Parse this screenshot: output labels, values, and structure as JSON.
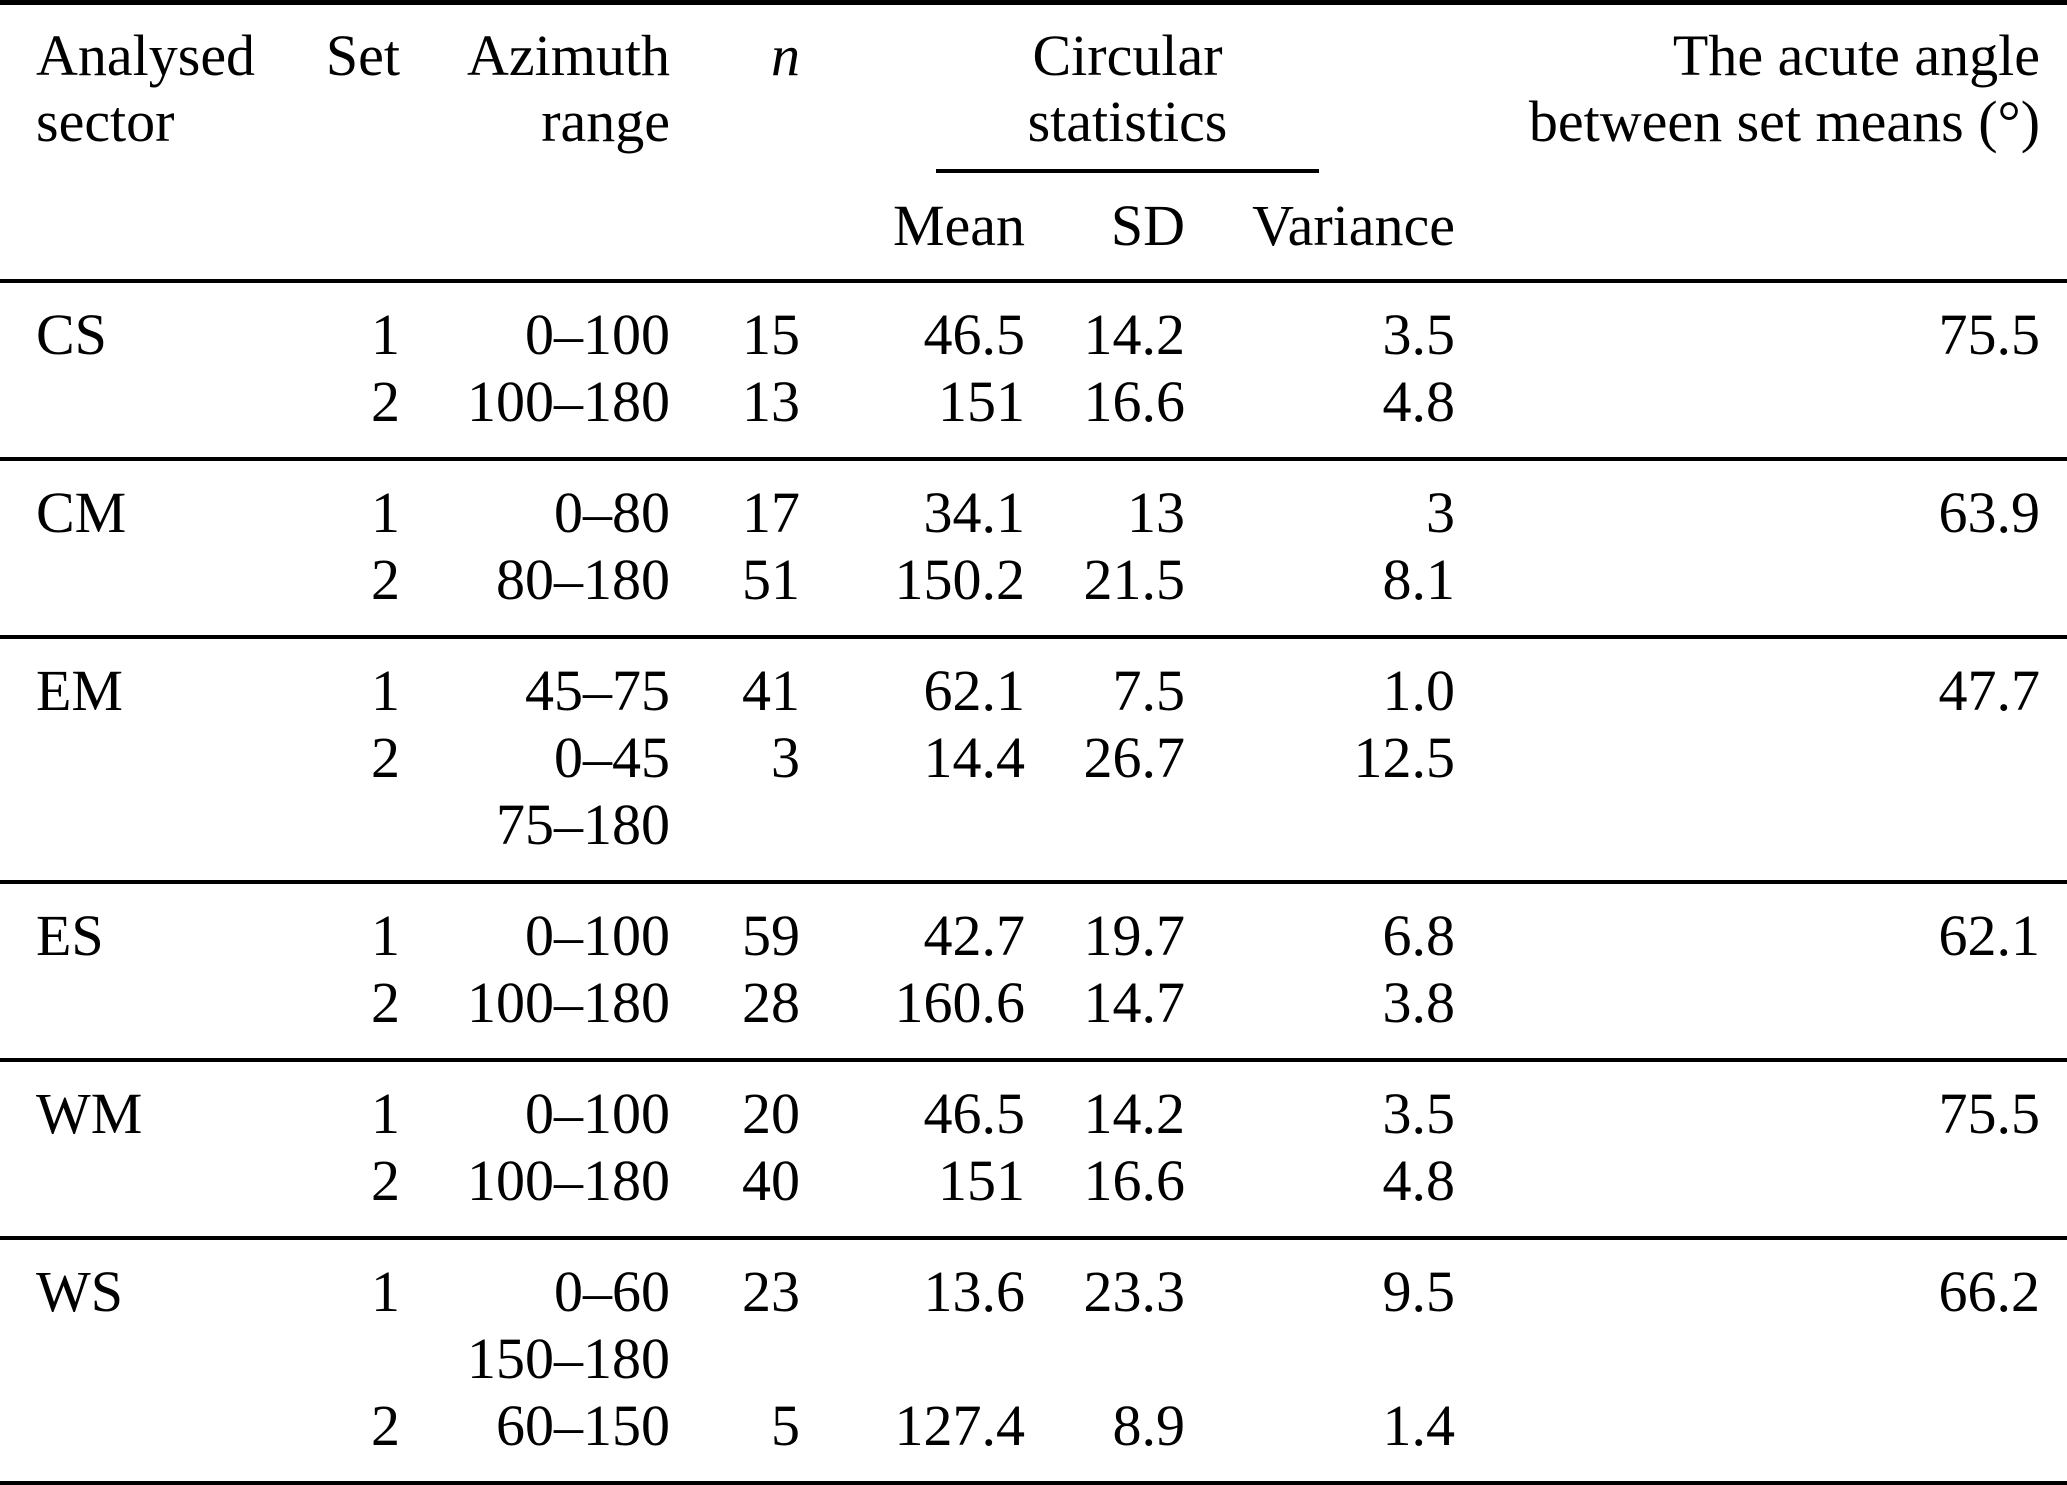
{
  "page": {
    "background": "#ffffff",
    "text_color": "#000000",
    "rule_color": "#000000"
  },
  "table": {
    "header": {
      "sector_lines": [
        "Analysed",
        "sector"
      ],
      "set": "Set",
      "azimuth_lines": [
        "Azimuth",
        "range"
      ],
      "n": "n",
      "circular_lines": [
        "Circular",
        "statistics"
      ],
      "mean": "Mean",
      "sd": "SD",
      "variance": "Variance",
      "angle_lines": [
        "The acute angle",
        "between set means (°)"
      ]
    },
    "sections": [
      {
        "sector": "CS",
        "rows": [
          {
            "set": "1",
            "azimuth": "0–100",
            "n": "15",
            "mean": "46.5",
            "sd": "14.2",
            "variance": "3.5",
            "angle": "75.5"
          },
          {
            "set": "2",
            "azimuth": "100–180",
            "n": "13",
            "mean": "151",
            "sd": "16.6",
            "variance": "4.8",
            "angle": ""
          }
        ]
      },
      {
        "sector": "CM",
        "rows": [
          {
            "set": "1",
            "azimuth": "0–80",
            "n": "17",
            "mean": "34.1",
            "sd": "13",
            "variance": "3",
            "angle": "63.9"
          },
          {
            "set": "2",
            "azimuth": "80–180",
            "n": "51",
            "mean": "150.2",
            "sd": "21.5",
            "variance": "8.1",
            "angle": ""
          }
        ]
      },
      {
        "sector": "EM",
        "rows": [
          {
            "set": "1",
            "azimuth": "45–75",
            "n": "41",
            "mean": "62.1",
            "sd": "7.5",
            "variance": "1.0",
            "angle": "47.7"
          },
          {
            "set": "2",
            "azimuth": "0–45",
            "n": "3",
            "mean": "14.4",
            "sd": "26.7",
            "variance": "12.5",
            "angle": ""
          },
          {
            "set": "",
            "azimuth": "75–180",
            "n": "",
            "mean": "",
            "sd": "",
            "variance": "",
            "angle": ""
          }
        ]
      },
      {
        "sector": "ES",
        "rows": [
          {
            "set": "1",
            "azimuth": "0–100",
            "n": "59",
            "mean": "42.7",
            "sd": "19.7",
            "variance": "6.8",
            "angle": "62.1"
          },
          {
            "set": "2",
            "azimuth": "100–180",
            "n": "28",
            "mean": "160.6",
            "sd": "14.7",
            "variance": "3.8",
            "angle": ""
          }
        ]
      },
      {
        "sector": "WM",
        "rows": [
          {
            "set": "1",
            "azimuth": "0–100",
            "n": "20",
            "mean": "46.5",
            "sd": "14.2",
            "variance": "3.5",
            "angle": "75.5"
          },
          {
            "set": "2",
            "azimuth": "100–180",
            "n": "40",
            "mean": "151",
            "sd": "16.6",
            "variance": "4.8",
            "angle": ""
          }
        ]
      },
      {
        "sector": "WS",
        "rows": [
          {
            "set": "1",
            "azimuth": "0–60",
            "n": "23",
            "mean": "13.6",
            "sd": "23.3",
            "variance": "9.5",
            "angle": "66.2"
          },
          {
            "set": "",
            "azimuth": "150–180",
            "n": "",
            "mean": "",
            "sd": "",
            "variance": "",
            "angle": ""
          },
          {
            "set": "2",
            "azimuth": "60–150",
            "n": "5",
            "mean": "127.4",
            "sd": "8.9",
            "variance": "1.4",
            "angle": ""
          }
        ]
      }
    ]
  }
}
